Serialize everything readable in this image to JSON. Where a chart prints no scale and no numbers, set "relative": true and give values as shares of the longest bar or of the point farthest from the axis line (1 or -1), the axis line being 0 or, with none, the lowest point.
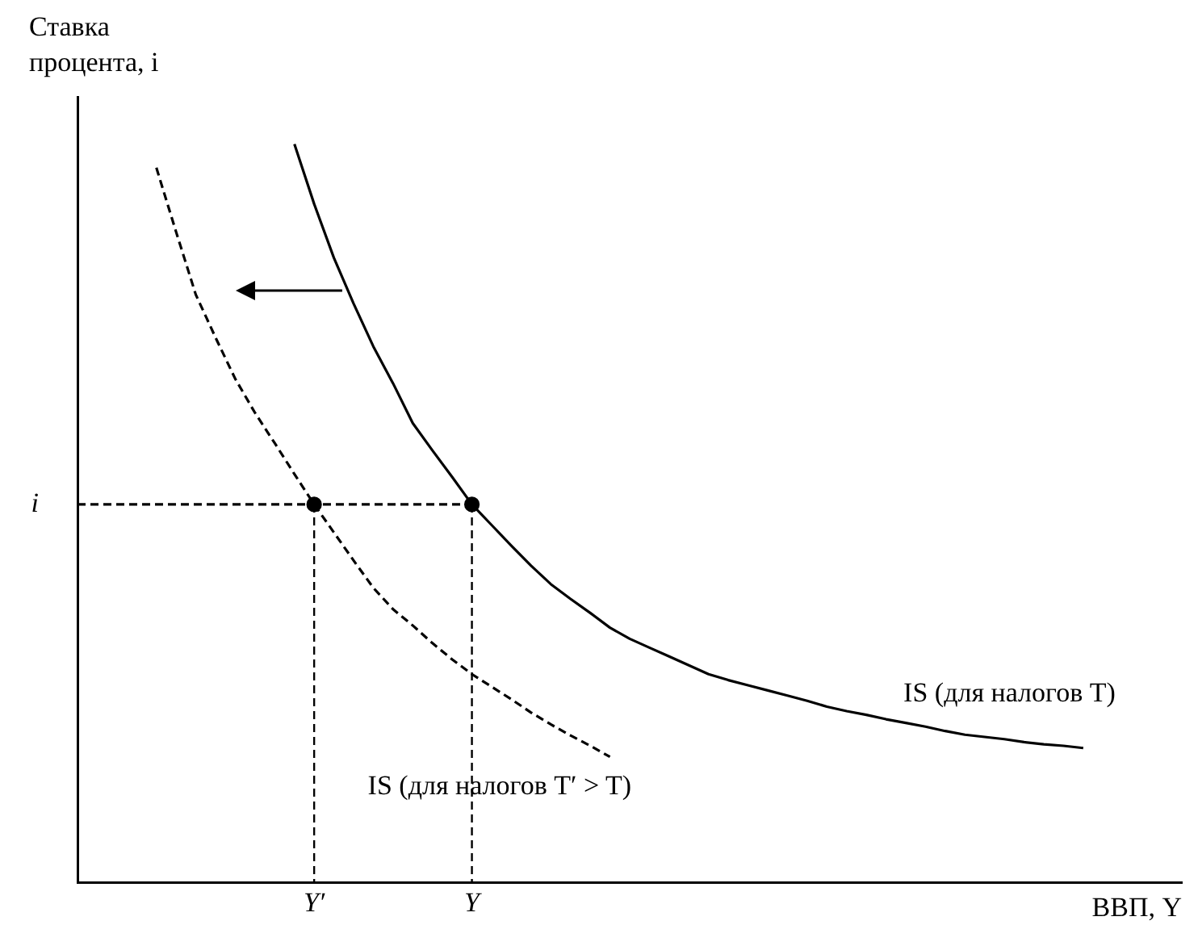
{
  "chart_data": {
    "type": "line",
    "relative": true,
    "xlabel": "ВВП, Y",
    "ylabel": "Ставка процента, i",
    "categories": [
      null,
      null,
      null,
      null,
      null,
      null,
      null,
      null,
      null,
      null,
      null,
      null,
      "Y′",
      null,
      null,
      null,
      null,
      null,
      null,
      null,
      "Y",
      null,
      null,
      null,
      null,
      null,
      null,
      null,
      null,
      null,
      null,
      null,
      null,
      null,
      null,
      null,
      null,
      null,
      null,
      null,
      null,
      null,
      null,
      null,
      null,
      null,
      null,
      null,
      null,
      null,
      null,
      null,
      null,
      null,
      null,
      null,
      null
    ],
    "grid": false,
    "legend": false,
    "marker": "none",
    "series": [
      {
        "color": "#000000",
        "line_style": "solid",
        "values": [
          null,
          null,
          null,
          null,
          null,
          null,
          null,
          null,
          null,
          null,
          null,
          1,
          0.919,
          0.846,
          0.784,
          0.726,
          0.676,
          0.622,
          0.585,
          0.549,
          0.512,
          0.484,
          0.456,
          0.429,
          0.404,
          0.384,
          0.365,
          0.345,
          0.33,
          0.318,
          0.306,
          0.294,
          0.282,
          0.274,
          0.267,
          0.26,
          0.253,
          0.246,
          0.238,
          0.232,
          0.227,
          0.221,
          0.216,
          0.211,
          0.205,
          0.2,
          0.197,
          0.194,
          0.19,
          0.187,
          0.185,
          0.182,
          null,
          null,
          null,
          null,
          null
        ]
      },
      {
        "color": "#000000",
        "line_style": "dashed",
        "values": [
          null,
          null,
          null,
          null,
          0.968,
          0.881,
          0.796,
          0.738,
          0.682,
          0.636,
          0.595,
          0.553,
          0.512,
          0.474,
          0.436,
          0.399,
          0.37,
          0.348,
          0.324,
          0.302,
          0.282,
          0.265,
          0.248,
          0.23,
          0.214,
          0.199,
          0.185,
          0.17,
          null,
          null,
          null,
          null,
          null,
          null,
          null,
          null,
          null,
          null,
          null,
          null,
          null,
          null,
          null,
          null,
          null,
          null,
          null,
          null,
          null,
          null,
          null,
          null,
          null,
          null,
          null,
          null,
          null
        ]
      },
      {
        "color": "#000000",
        "line_style": "dashed",
        "values": [
          0.512,
          0.512,
          0.512,
          0.512,
          0.512,
          0.512,
          0.512,
          0.512,
          0.512,
          0.512,
          0.512,
          0.512,
          0.512,
          0.512,
          0.512,
          0.512,
          0.512,
          0.512,
          0.512,
          0.512,
          0.512,
          null,
          null,
          null,
          null,
          null,
          null,
          null,
          null,
          null,
          null,
          null,
          null,
          null,
          null,
          null,
          null,
          null,
          null,
          null,
          null,
          null,
          null,
          null,
          null,
          null,
          null,
          null,
          null,
          null,
          null,
          null,
          null,
          null,
          null,
          null,
          null
        ]
      },
      {
        "type": "scatter",
        "marker": "circle",
        "color": "#000000",
        "values": [
          null,
          null,
          null,
          null,
          null,
          null,
          null,
          null,
          null,
          null,
          null,
          null,
          0.512,
          null,
          null,
          null,
          null,
          null,
          null,
          null,
          0.512,
          null,
          null,
          null,
          null,
          null,
          null,
          null,
          null,
          null,
          null,
          null,
          null,
          null,
          null,
          null,
          null,
          null,
          null,
          null,
          null,
          null,
          null,
          null,
          null,
          null,
          null,
          null,
          null,
          null,
          null,
          null,
          null,
          null,
          null,
          null,
          null
        ]
      }
    ],
    "annotations": [
      "IS (для налогов T)",
      "IS (для налогов T′ > T)",
      "i"
    ]
  }
}
